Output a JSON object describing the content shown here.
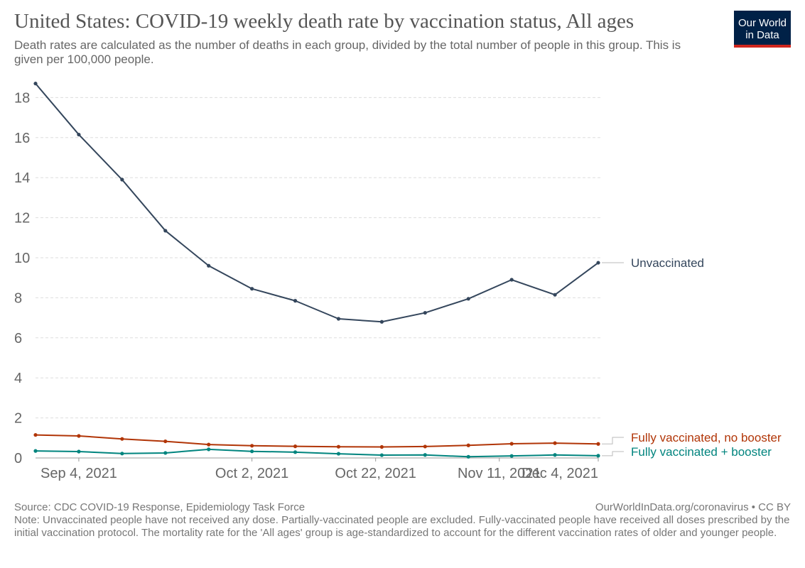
{
  "header": {
    "title": "United States: COVID-19 weekly death rate by vaccination status, All ages",
    "subtitle": "Death rates are calculated as the number of deaths in each group, divided by the total number of people in this group. This is given per 100,000 people.",
    "logo_line1": "Our World",
    "logo_line2": "in Data"
  },
  "footer": {
    "source": "Source: CDC COVID-19 Response, Epidemiology Task Force",
    "credit": "OurWorldInData.org/coronavirus • CC BY",
    "note": "Note: Unvaccinated people have not received any dose. Partially-vaccinated people are excluded. Fully-vaccinated people have received all doses prescribed by the initial vaccination protocol. The mortality rate for the 'All ages' group is age-standardized to account for the different vaccination rates of older and younger people."
  },
  "colors": {
    "unvaccinated": "#34465c",
    "no_booster": "#b13507",
    "booster": "#00847e",
    "grid": "#dddddd",
    "tick_text": "#666666",
    "logo_bg": "#002147",
    "logo_accent": "#ce261e"
  },
  "chart_data": {
    "type": "line",
    "x": [
      "2021-08-28",
      "2021-09-04",
      "2021-09-11",
      "2021-09-18",
      "2021-09-25",
      "2021-10-02",
      "2021-10-09",
      "2021-10-16",
      "2021-10-23",
      "2021-10-30",
      "2021-11-06",
      "2021-11-13",
      "2021-11-20",
      "2021-11-27"
    ],
    "x_tick_labels": [
      {
        "date": "2021-09-04",
        "label": "Sep 4, 2021"
      },
      {
        "date": "2021-10-02",
        "label": "Oct 2, 2021"
      },
      {
        "date": "2021-10-22",
        "label": "Oct 22, 2021"
      },
      {
        "date": "2021-11-11",
        "label": "Nov 11, 2021"
      },
      {
        "date": "2021-12-04",
        "label": "Dec 4, 2021"
      }
    ],
    "y_ticks": [
      0,
      2,
      4,
      6,
      8,
      10,
      12,
      14,
      16,
      18
    ],
    "ylim": [
      0,
      18
    ],
    "grid": true,
    "legend_placement": "right, inline labels at line ends",
    "series": [
      {
        "name": "Unvaccinated",
        "color": "#34465c",
        "values": [
          18.7,
          16.15,
          13.9,
          11.35,
          9.6,
          8.45,
          7.85,
          6.95,
          6.8,
          7.25,
          7.95,
          8.9,
          8.15,
          9.75
        ]
      },
      {
        "name": "Fully vaccinated, no booster",
        "color": "#b13507",
        "values": [
          1.15,
          1.1,
          0.95,
          0.83,
          0.67,
          0.61,
          0.58,
          0.56,
          0.55,
          0.57,
          0.63,
          0.71,
          0.74,
          0.7
        ]
      },
      {
        "name": "Fully vaccinated + booster",
        "color": "#00847e",
        "values": [
          0.35,
          0.32,
          0.22,
          0.25,
          0.43,
          0.33,
          0.29,
          0.21,
          0.14,
          0.15,
          0.06,
          0.1,
          0.15,
          0.11
        ]
      }
    ]
  }
}
